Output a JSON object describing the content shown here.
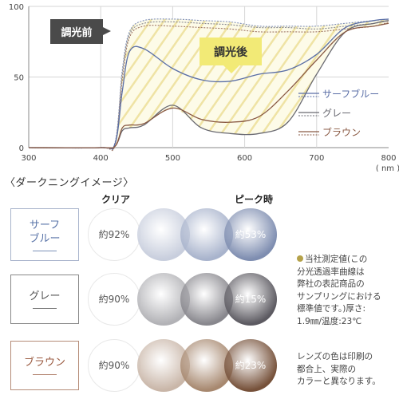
{
  "chart_data": {
    "type": "line",
    "x": [
      300,
      400,
      420,
      430,
      440,
      460,
      500,
      540,
      580,
      620,
      660,
      700,
      740,
      780,
      800
    ],
    "series": [
      {
        "name": "サーフブルー",
        "state": "before",
        "color": "#7f8fb8",
        "values": [
          0,
          0,
          4,
          55,
          82,
          90,
          91,
          90,
          89,
          86,
          86,
          86,
          88,
          90,
          91
        ]
      },
      {
        "name": "グレー",
        "state": "before",
        "color": "#8a8a92",
        "values": [
          0,
          0,
          3,
          52,
          80,
          88,
          89,
          88,
          87,
          85,
          85,
          84,
          86,
          88,
          90
        ]
      },
      {
        "name": "ブラウン",
        "state": "before",
        "color": "#a07868",
        "values": [
          0,
          0,
          2,
          48,
          78,
          86,
          86,
          85,
          84,
          82,
          82,
          82,
          84,
          86,
          89
        ]
      },
      {
        "name": "サーフブルー",
        "state": "after",
        "color": "#5a6ea6",
        "values": [
          0,
          0,
          3,
          40,
          68,
          70,
          56,
          48,
          47,
          52,
          55,
          66,
          85,
          90,
          91
        ]
      },
      {
        "name": "グレー",
        "state": "after",
        "color": "#6a6a72",
        "values": [
          0,
          0,
          1,
          12,
          14,
          16,
          30,
          14,
          10,
          10,
          18,
          52,
          82,
          88,
          90
        ]
      },
      {
        "name": "ブラウン",
        "state": "after",
        "color": "#8a5a44",
        "values": [
          0,
          0,
          1,
          14,
          16,
          17,
          28,
          20,
          18,
          22,
          40,
          62,
          82,
          86,
          88
        ]
      }
    ],
    "xticks": [
      300,
      400,
      500,
      600,
      700,
      800
    ],
    "yticks": [
      0,
      50,
      100
    ],
    "xlim": [
      300,
      800
    ],
    "ylim": [
      0,
      100
    ],
    "xunit": "( nm )",
    "grid": true,
    "legend_position": "right",
    "annotations": [
      "調光前",
      "調光後"
    ]
  },
  "section_title": "〈ダークニングイメージ〉",
  "col_clear": "クリア",
  "col_peak": "ピーク時",
  "rows": [
    {
      "label_line1": "サーフ",
      "label_line2": "ブルー",
      "color": "#5a74a8",
      "clear_pct": "約92%",
      "peak_pct": "約53%",
      "c1": "#c8cedd",
      "c2": "#a8b3cc",
      "c3": "#7e8db0"
    },
    {
      "label_line1": "グレー",
      "label_line2": "",
      "color": "#555555",
      "clear_pct": "約90%",
      "peak_pct": "約15%",
      "c1": "#b2b2b6",
      "c2": "#88878d",
      "c3": "#5c5a61"
    },
    {
      "label_line1": "ブラウン",
      "label_line2": "",
      "color": "#9a5a40",
      "clear_pct": "約90%",
      "peak_pct": "約23%",
      "c1": "#c9b6a8",
      "c2": "#a7886f",
      "c3": "#76513a"
    }
  ],
  "note1_lines": [
    "当社測定値(この",
    "分光透過率曲線は",
    "弊社の表記商品の",
    "サンプリングにおける",
    "標準値です。)厚さ:",
    "1.9㎜/温度:23℃"
  ],
  "note2_lines": [
    "レンズの色は印刷の",
    "都合上、実際の",
    "カラーと異なります。"
  ]
}
